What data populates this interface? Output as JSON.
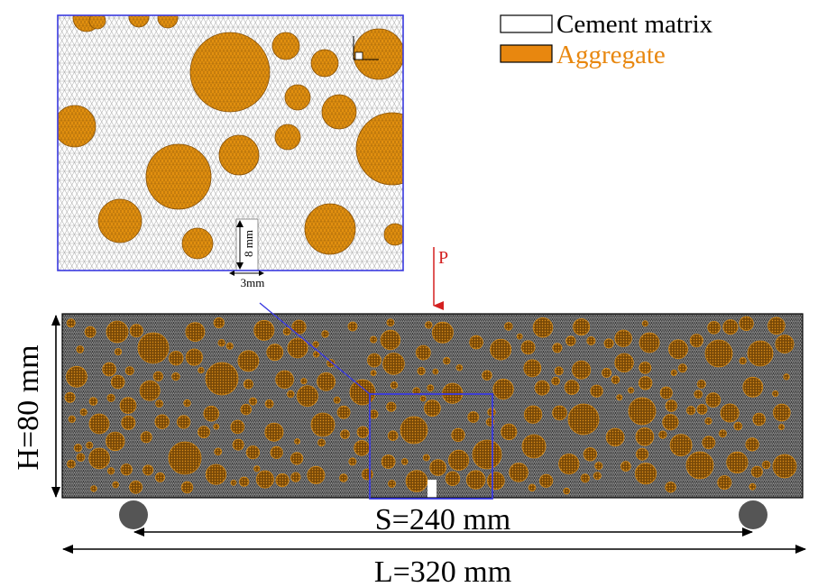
{
  "legend": {
    "items": [
      {
        "label": "Cement matrix",
        "swatch": "#ffffff",
        "text_color": "#000000"
      },
      {
        "label": "Aggregate",
        "swatch": "#e8870f",
        "text_color": "#e8870f"
      }
    ]
  },
  "load_label": "P",
  "dimensions": {
    "height": "H=80 mm",
    "span": "S=240 mm",
    "length": "L=320 mm"
  },
  "notch": {
    "depth": "8 mm",
    "width": "3mm"
  },
  "colors": {
    "aggregate": "#e2900f",
    "aggregate_dark": "#8a5206",
    "mesh": "#4a4a4a",
    "beam_bg": "#2a2a2a",
    "zoom_frame": "#3a3ae0",
    "load_arrow": "#d42020",
    "support": "#555555"
  }
}
